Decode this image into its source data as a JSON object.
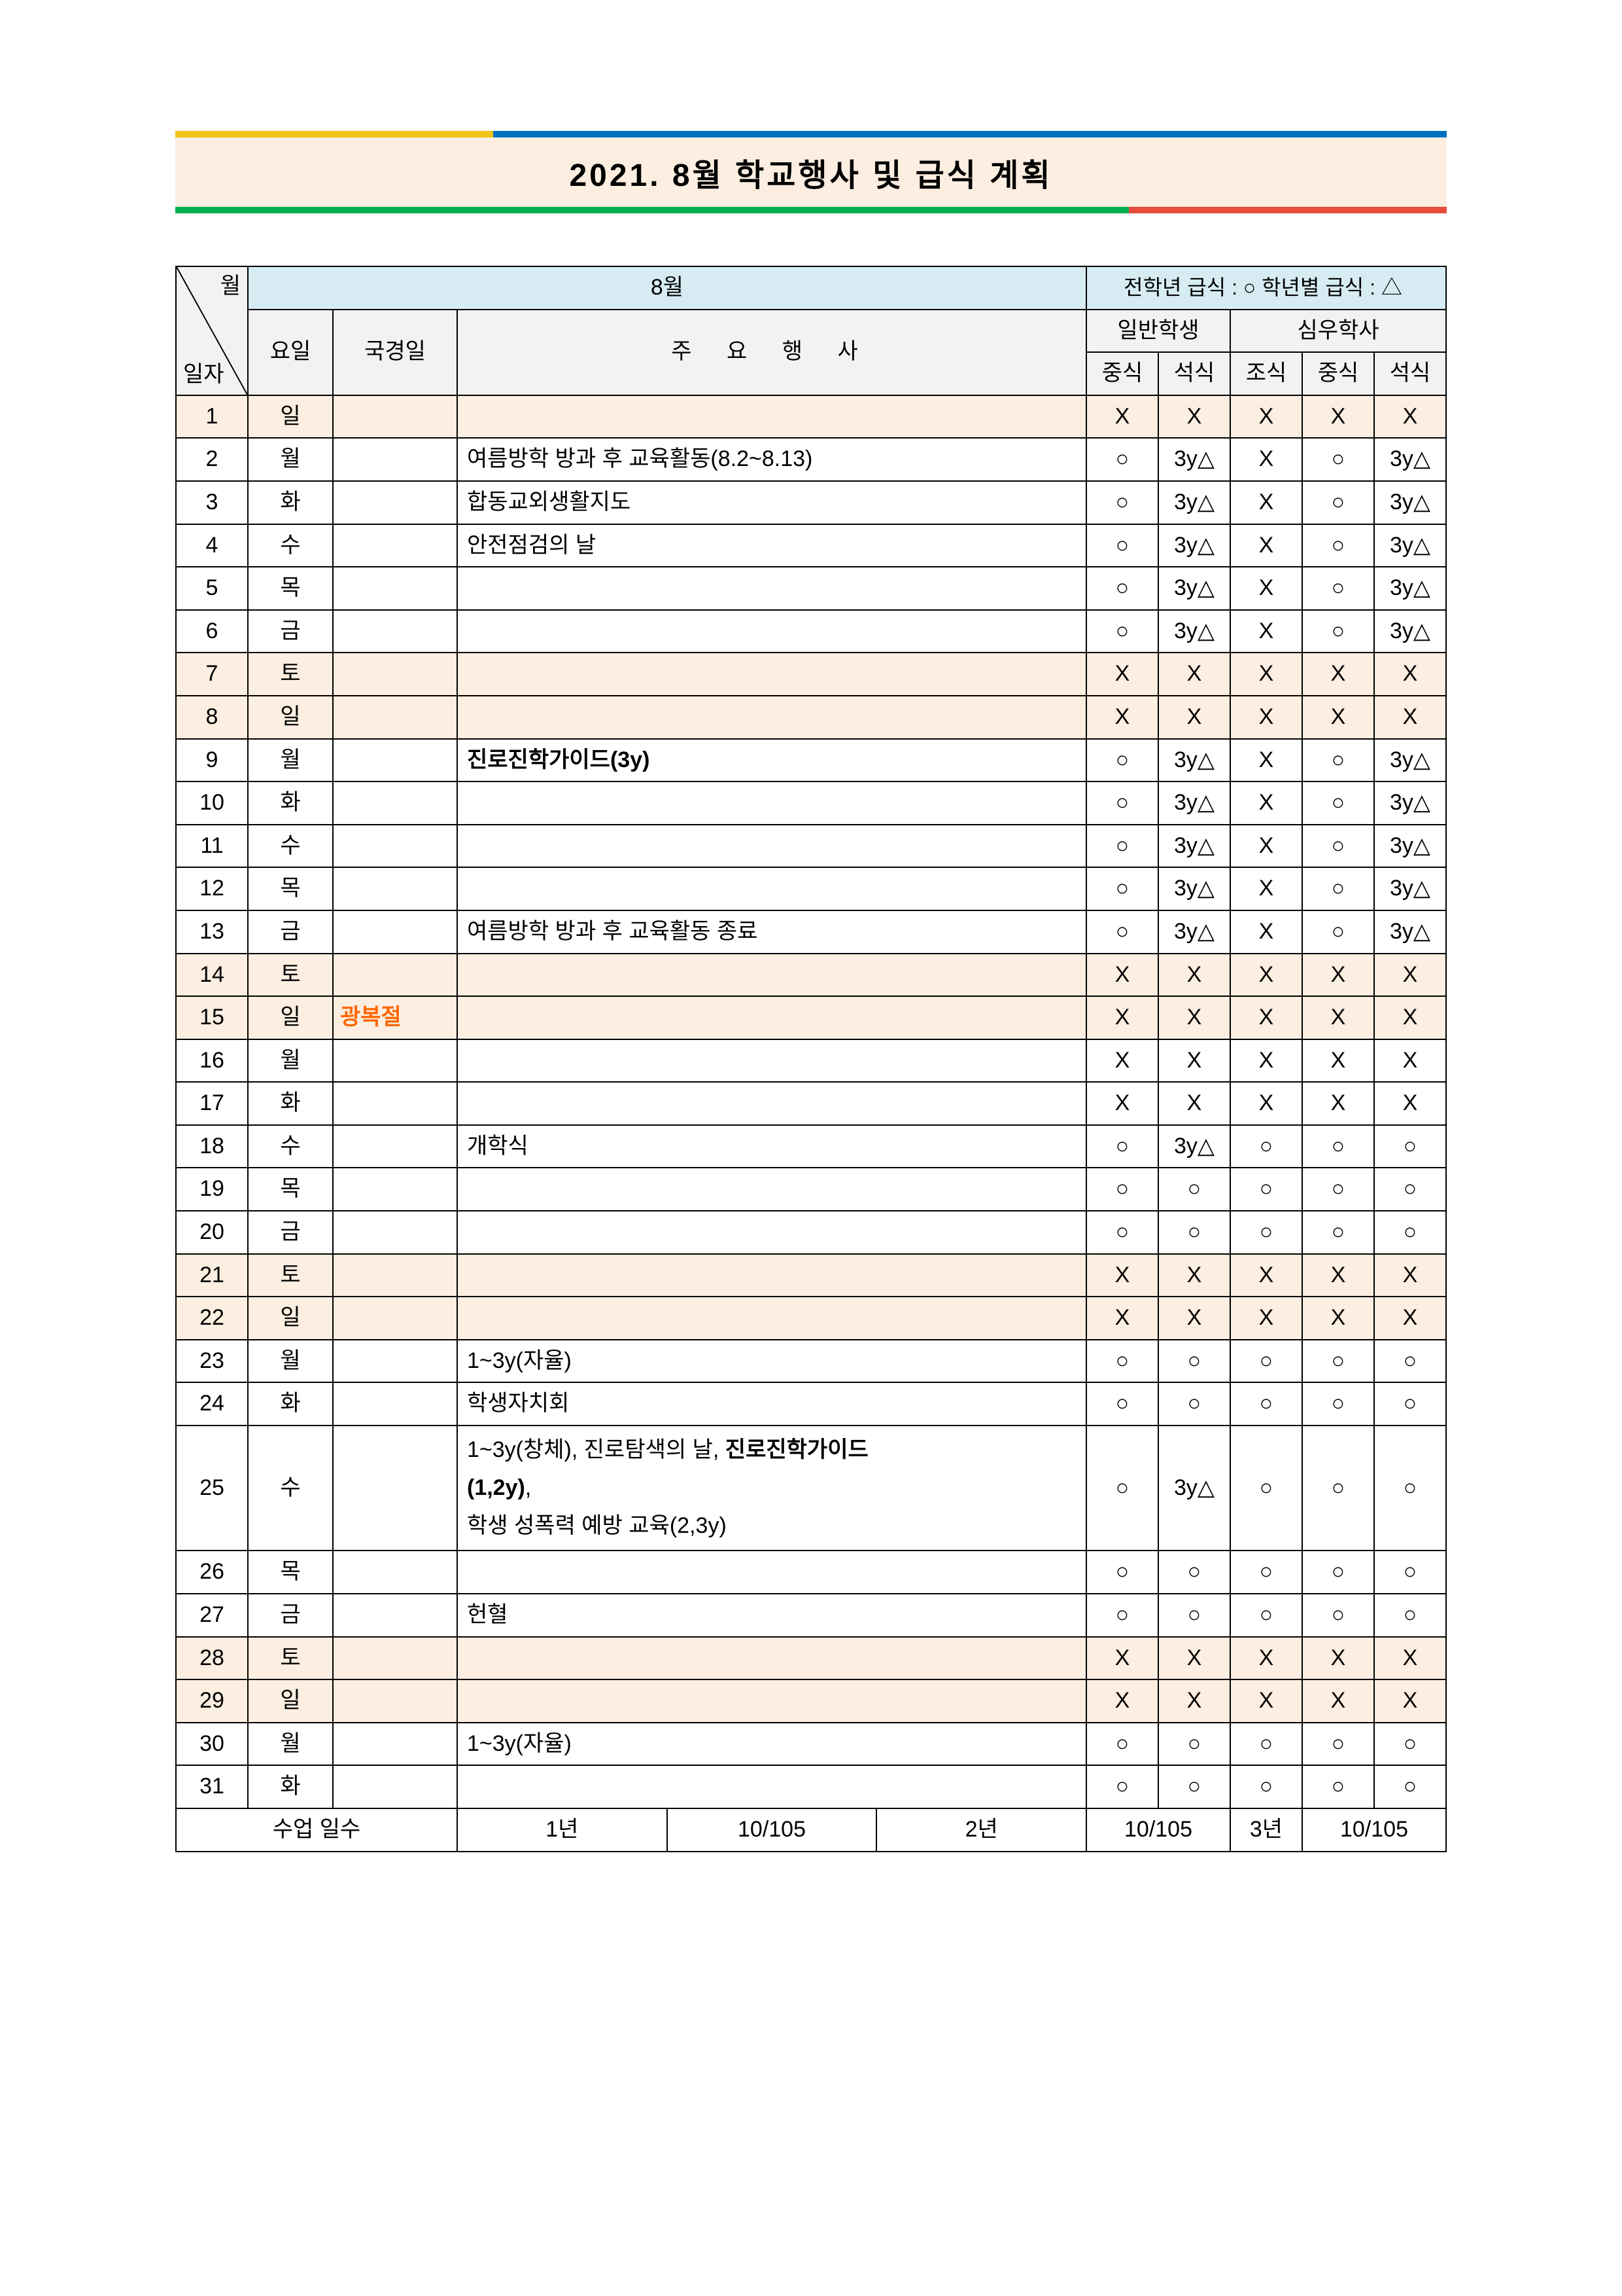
{
  "title": "2021. 8월 학교행사 및 급식 계획",
  "colors": {
    "title_bg": "#fceee0",
    "stripe_yellow": "#f0c419",
    "stripe_blue": "#0070c0",
    "stripe_green": "#00b050",
    "stripe_red": "#e74c3c",
    "header_blue": "#d6ecf2",
    "row_highlight": "#fceee0",
    "holiday_text": "#ff6600",
    "border": "#000000",
    "text": "#000000"
  },
  "header": {
    "month_label": "월",
    "date_label": "일자",
    "month_heading": "8월",
    "legend": "전학년 급식 : ○  학년별 급식 : △",
    "day_col": "요일",
    "holiday_col": "국경일",
    "event_col": "주   요   행   사",
    "general_group": "일반학생",
    "dorm_group": "심우학사",
    "lunch": "중식",
    "dinner": "석식",
    "breakfast": "조식"
  },
  "marks": {
    "circle": "○",
    "triangle": "3y△",
    "x": "X"
  },
  "rows": [
    {
      "date": "1",
      "day": "일",
      "hl": true,
      "holiday": "",
      "event": "",
      "m": [
        "X",
        "X",
        "X",
        "X",
        "X"
      ]
    },
    {
      "date": "2",
      "day": "월",
      "hl": false,
      "holiday": "",
      "event": "여름방학 방과 후 교육활동(8.2~8.13)",
      "m": [
        "○",
        "3y△",
        "X",
        "○",
        "3y△"
      ]
    },
    {
      "date": "3",
      "day": "화",
      "hl": false,
      "holiday": "",
      "event": "합동교외생활지도",
      "m": [
        "○",
        "3y△",
        "X",
        "○",
        "3y△"
      ]
    },
    {
      "date": "4",
      "day": "수",
      "hl": false,
      "holiday": "",
      "event": "안전점검의 날",
      "m": [
        "○",
        "3y△",
        "X",
        "○",
        "3y△"
      ]
    },
    {
      "date": "5",
      "day": "목",
      "hl": false,
      "holiday": "",
      "event": "",
      "m": [
        "○",
        "3y△",
        "X",
        "○",
        "3y△"
      ]
    },
    {
      "date": "6",
      "day": "금",
      "hl": false,
      "holiday": "",
      "event": "",
      "m": [
        "○",
        "3y△",
        "X",
        "○",
        "3y△"
      ]
    },
    {
      "date": "7",
      "day": "토",
      "hl": true,
      "holiday": "",
      "event": "",
      "m": [
        "X",
        "X",
        "X",
        "X",
        "X"
      ]
    },
    {
      "date": "8",
      "day": "일",
      "hl": true,
      "holiday": "",
      "event": "",
      "m": [
        "X",
        "X",
        "X",
        "X",
        "X"
      ]
    },
    {
      "date": "9",
      "day": "월",
      "hl": false,
      "holiday": "",
      "event": "진로진학가이드(3y)",
      "bold": true,
      "m": [
        "○",
        "3y△",
        "X",
        "○",
        "3y△"
      ]
    },
    {
      "date": "10",
      "day": "화",
      "hl": false,
      "holiday": "",
      "event": "",
      "m": [
        "○",
        "3y△",
        "X",
        "○",
        "3y△"
      ]
    },
    {
      "date": "11",
      "day": "수",
      "hl": false,
      "holiday": "",
      "event": "",
      "m": [
        "○",
        "3y△",
        "X",
        "○",
        "3y△"
      ]
    },
    {
      "date": "12",
      "day": "목",
      "hl": false,
      "holiday": "",
      "event": "",
      "m": [
        "○",
        "3y△",
        "X",
        "○",
        "3y△"
      ]
    },
    {
      "date": "13",
      "day": "금",
      "hl": false,
      "holiday": "",
      "event": "여름방학 방과 후 교육활동 종료",
      "m": [
        "○",
        "3y△",
        "X",
        "○",
        "3y△"
      ]
    },
    {
      "date": "14",
      "day": "토",
      "hl": true,
      "holiday": "",
      "event": "",
      "m": [
        "X",
        "X",
        "X",
        "X",
        "X"
      ]
    },
    {
      "date": "15",
      "day": "일",
      "hl": true,
      "holiday": "광복절",
      "event": "",
      "m": [
        "X",
        "X",
        "X",
        "X",
        "X"
      ]
    },
    {
      "date": "16",
      "day": "월",
      "hl": false,
      "holiday": "",
      "event": "",
      "m": [
        "X",
        "X",
        "X",
        "X",
        "X"
      ]
    },
    {
      "date": "17",
      "day": "화",
      "hl": false,
      "holiday": "",
      "event": "",
      "m": [
        "X",
        "X",
        "X",
        "X",
        "X"
      ]
    },
    {
      "date": "18",
      "day": "수",
      "hl": false,
      "holiday": "",
      "event": "개학식",
      "m": [
        "○",
        "3y△",
        "○",
        "○",
        "○"
      ]
    },
    {
      "date": "19",
      "day": "목",
      "hl": false,
      "holiday": "",
      "event": "",
      "m": [
        "○",
        "○",
        "○",
        "○",
        "○"
      ]
    },
    {
      "date": "20",
      "day": "금",
      "hl": false,
      "holiday": "",
      "event": "",
      "m": [
        "○",
        "○",
        "○",
        "○",
        "○"
      ]
    },
    {
      "date": "21",
      "day": "토",
      "hl": true,
      "holiday": "",
      "event": "",
      "m": [
        "X",
        "X",
        "X",
        "X",
        "X"
      ]
    },
    {
      "date": "22",
      "day": "일",
      "hl": true,
      "holiday": "",
      "event": "",
      "m": [
        "X",
        "X",
        "X",
        "X",
        "X"
      ]
    },
    {
      "date": "23",
      "day": "월",
      "hl": false,
      "holiday": "",
      "event": "1~3y(자율)",
      "m": [
        "○",
        "○",
        "○",
        "○",
        "○"
      ]
    },
    {
      "date": "24",
      "day": "화",
      "hl": false,
      "holiday": "",
      "event": "학생자치회",
      "m": [
        "○",
        "○",
        "○",
        "○",
        "○"
      ]
    },
    {
      "date": "25",
      "day": "수",
      "hl": false,
      "holiday": "",
      "event_html": "1~3y(창체), 진로탐색의 날, <b>진로진학가이드<br>(1,2y)</b>,<br>학생 성폭력 예방 교육(2,3y)",
      "m": [
        "○",
        "3y△",
        "○",
        "○",
        "○"
      ]
    },
    {
      "date": "26",
      "day": "목",
      "hl": false,
      "holiday": "",
      "event": "",
      "m": [
        "○",
        "○",
        "○",
        "○",
        "○"
      ]
    },
    {
      "date": "27",
      "day": "금",
      "hl": false,
      "holiday": "",
      "event": "헌혈",
      "m": [
        "○",
        "○",
        "○",
        "○",
        "○"
      ]
    },
    {
      "date": "28",
      "day": "토",
      "hl": true,
      "holiday": "",
      "event": "",
      "m": [
        "X",
        "X",
        "X",
        "X",
        "X"
      ]
    },
    {
      "date": "29",
      "day": "일",
      "hl": true,
      "holiday": "",
      "event": "",
      "m": [
        "X",
        "X",
        "X",
        "X",
        "X"
      ]
    },
    {
      "date": "30",
      "day": "월",
      "hl": false,
      "holiday": "",
      "event": "1~3y(자율)",
      "m": [
        "○",
        "○",
        "○",
        "○",
        "○"
      ]
    },
    {
      "date": "31",
      "day": "화",
      "hl": false,
      "holiday": "",
      "event": "",
      "m": [
        "○",
        "○",
        "○",
        "○",
        "○"
      ]
    }
  ],
  "footer": {
    "label": "수업  일수",
    "y1_label": "1년",
    "y1_val": "10/105",
    "y2_label": "2년",
    "y2_val": "10/105",
    "y3_label": "3년",
    "y3_val": "10/105"
  }
}
